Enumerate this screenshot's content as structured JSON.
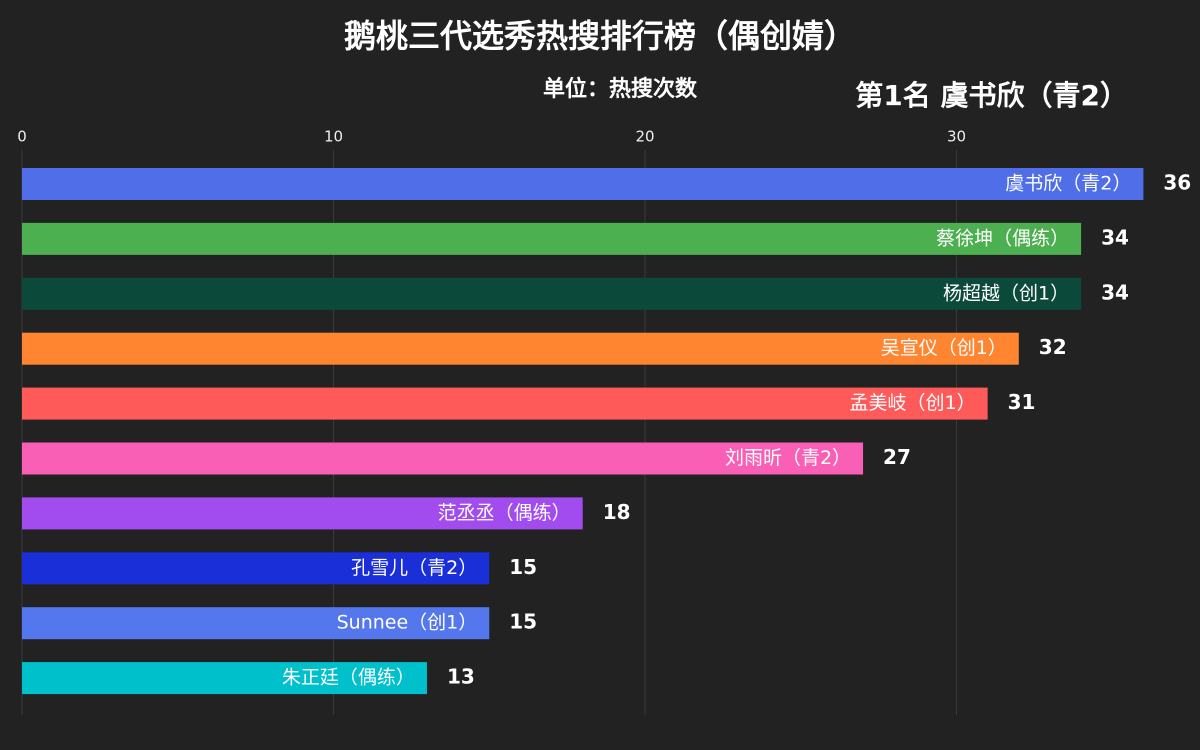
{
  "chart_data": {
    "type": "bar",
    "orientation": "horizontal",
    "title": "鹅桃三代选秀热搜排行榜（偶创婧）",
    "subtitle": "单位：热搜次数",
    "annotation": "第1名 虞书欣（青2）",
    "categories": [
      "虞书欣（青2）",
      "蔡徐坤（偶练）",
      "杨超越（创1）",
      "吴宣仪（创1）",
      "孟美岐（创1）",
      "刘雨昕（青2）",
      "范丞丞（偶练）",
      "孔雪儿（青2）",
      "Sunnee（创1）",
      "朱正廷（偶练）"
    ],
    "values": [
      36,
      34,
      34,
      32,
      31,
      27,
      18,
      15,
      15,
      13
    ],
    "colors": [
      "#4f6ee8",
      "#4caf50",
      "#0b4a3a",
      "#ff8531",
      "#ff5a5a",
      "#f85fb5",
      "#a24cf0",
      "#1b2fd8",
      "#5577ee",
      "#00c0cc"
    ],
    "xlim": [
      0,
      37
    ],
    "xticks": [
      0,
      10,
      20,
      30
    ],
    "grid": true
  }
}
